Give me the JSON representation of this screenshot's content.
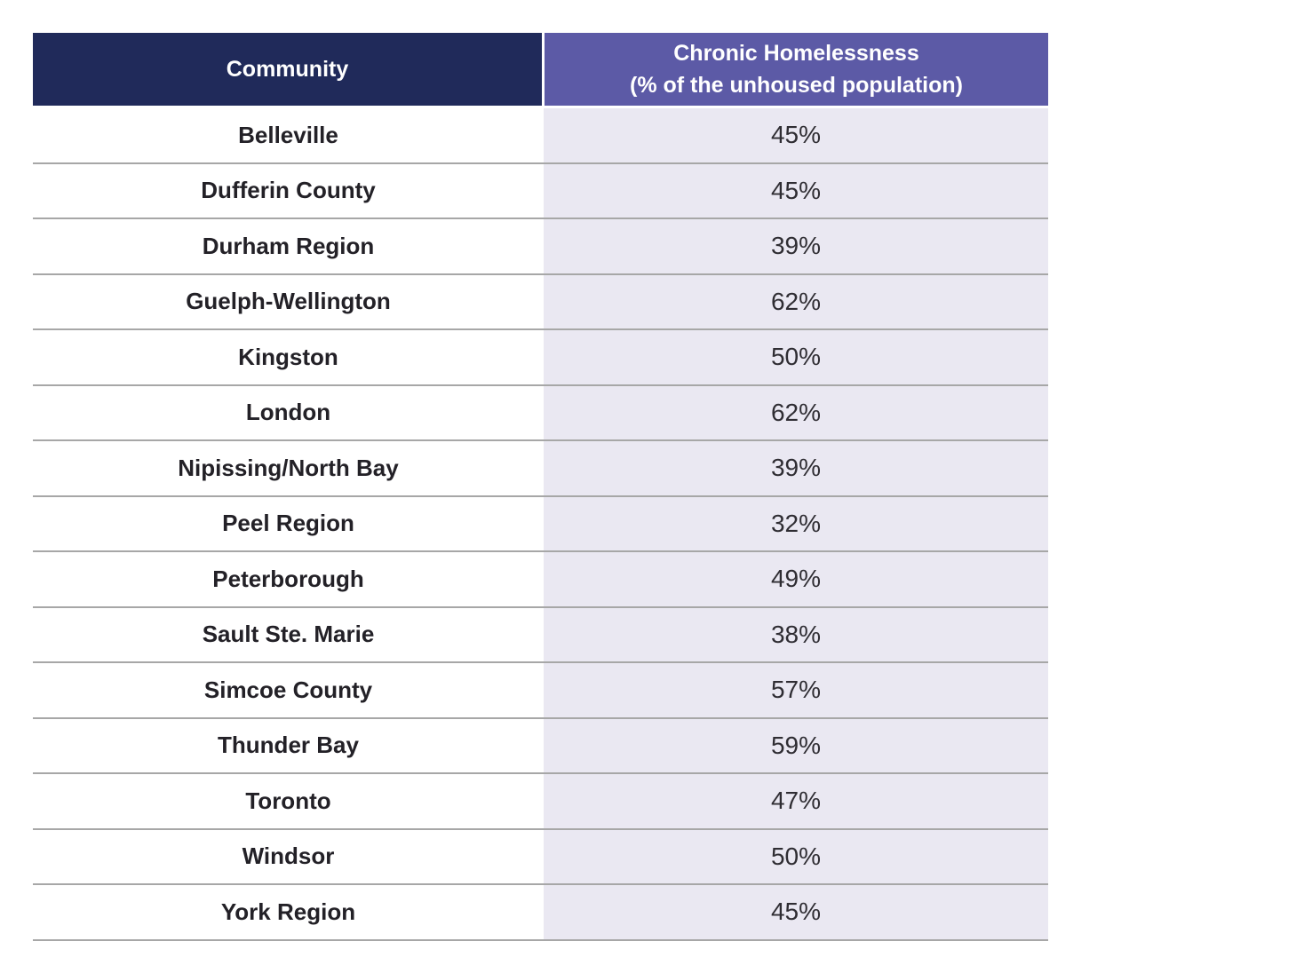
{
  "page": {
    "background": "#ffffff"
  },
  "table": {
    "header": {
      "community_label": "Community",
      "chronic_title": "Chronic Homelessness",
      "chronic_subtitle": "(% of the unhoused population)"
    },
    "rows": [
      {
        "community": "Belleville",
        "percent": "45%"
      },
      {
        "community": "Dufferin County",
        "percent": "45%"
      },
      {
        "community": "Durham Region",
        "percent": "39%"
      },
      {
        "community": "Guelph-Wellington",
        "percent": "62%"
      },
      {
        "community": "Kingston",
        "percent": "50%"
      },
      {
        "community": "London",
        "percent": "62%"
      },
      {
        "community": "Nipissing/North Bay",
        "percent": "39%"
      },
      {
        "community": "Peel Region",
        "percent": "32%"
      },
      {
        "community": "Peterborough",
        "percent": "49%"
      },
      {
        "community": "Sault Ste. Marie",
        "percent": "38%"
      },
      {
        "community": "Simcoe County",
        "percent": "57%"
      },
      {
        "community": "Thunder Bay",
        "percent": "59%"
      },
      {
        "community": "Toronto",
        "percent": "47%"
      },
      {
        "community": "Windsor",
        "percent": "50%"
      },
      {
        "community": "York Region",
        "percent": "45%"
      }
    ],
    "colors": {
      "header_community_bg": "#202a5a",
      "header_chronic_bg": "#5c5aa6",
      "header_text": "#ffffff",
      "value_column_bg": "#eae8f2",
      "row_divider": "#a7a7a7",
      "body_text": "#232127",
      "value_text": "#2f2d33"
    }
  },
  "chart_data": {
    "type": "table",
    "columns": [
      "Community",
      "Chronic Homelessness (% of the unhoused population)"
    ],
    "rows": [
      [
        "Belleville",
        "45%"
      ],
      [
        "Dufferin County",
        "45%"
      ],
      [
        "Durham Region",
        "39%"
      ],
      [
        "Guelph-Wellington",
        "62%"
      ],
      [
        "Kingston",
        "50%"
      ],
      [
        "London",
        "62%"
      ],
      [
        "Nipissing/North Bay",
        "39%"
      ],
      [
        "Peel Region",
        "32%"
      ],
      [
        "Peterborough",
        "49%"
      ],
      [
        "Sault Ste. Marie",
        "38%"
      ],
      [
        "Simcoe County",
        "57%"
      ],
      [
        "Thunder Bay",
        "59%"
      ],
      [
        "Toronto",
        "47%"
      ],
      [
        "Windsor",
        "50%"
      ],
      [
        "York Region",
        "45%"
      ]
    ],
    "values": [
      45,
      45,
      39,
      62,
      50,
      62,
      39,
      32,
      49,
      38,
      57,
      59,
      47,
      50,
      45
    ],
    "layout": {
      "value_column_alignment": "center",
      "community_column_alignment": "center",
      "grid": "horizontal-dividers"
    }
  }
}
